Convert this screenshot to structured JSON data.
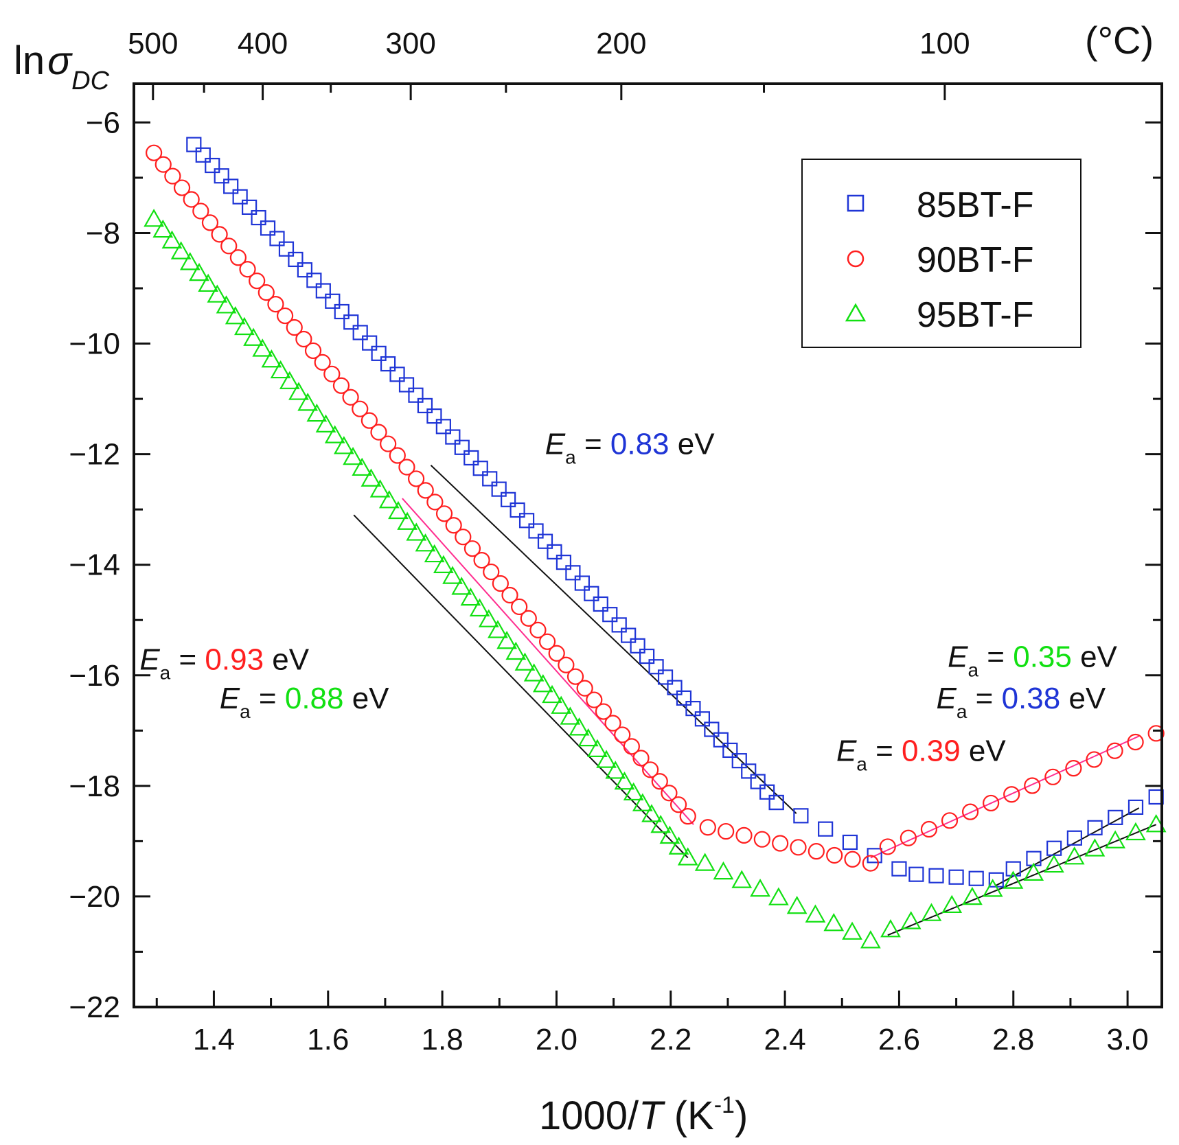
{
  "chart_data": {
    "type": "scatter",
    "title": "",
    "ylabel": {
      "main": "ln",
      "symbol": "σ",
      "subscript": "DC"
    },
    "xlabel": {
      "prefix": "1000/",
      "var": "T",
      "unit_open": " (K",
      "unit_sup": "-1",
      "unit_close": ")"
    },
    "top_axis_label": "(°C)",
    "xlim": [
      1.26,
      3.06
    ],
    "ylim": [
      -22,
      -5.3
    ],
    "x_ticks": [
      "1.4",
      "1.6",
      "1.8",
      "2.0",
      "2.2",
      "2.4",
      "2.6",
      "2.8",
      "3.0"
    ],
    "y_ticks": [
      "-6",
      "-8",
      "-10",
      "-12",
      "-14",
      "-16",
      "-18",
      "-20",
      "-22"
    ],
    "top_ticks": [
      {
        "label": "500",
        "celsius": 500
      },
      {
        "label": "400",
        "celsius": 400
      },
      {
        "label": "300",
        "celsius": 300
      },
      {
        "label": "200",
        "celsius": 200
      },
      {
        "label": "100",
        "celsius": 100
      }
    ],
    "colors": {
      "blue": "#1f35d6",
      "red": "#ff1f1f",
      "green": "#12e012",
      "pink": "#ff2d8f",
      "black": "#111111"
    },
    "series": [
      {
        "name": "85BT-F",
        "marker": "square",
        "color": "#1f35d6",
        "segments": [
          {
            "x0": 1.365,
            "y0": -6.4,
            "x1": 2.385,
            "y1": -18.3,
            "n": 64
          },
          {
            "x0": 2.385,
            "y0": -18.3,
            "x1": 2.6,
            "y1": -19.5,
            "n": 6
          },
          {
            "x0": 2.63,
            "y0": -19.6,
            "x1": 2.77,
            "y1": -19.7,
            "n": 5
          },
          {
            "x0": 2.8,
            "y0": -19.5,
            "x1": 3.05,
            "y1": -18.2,
            "n": 8
          }
        ],
        "fit_lines": [
          {
            "x": [
              1.78,
              2.42
            ],
            "y": [
              -12.2,
              -18.5
            ],
            "color": "#111111"
          },
          {
            "x": [
              2.77,
              3.02
            ],
            "y": [
              -19.8,
              -18.4
            ],
            "color": "#111111"
          }
        ]
      },
      {
        "name": "90BT-F",
        "marker": "circle",
        "color": "#ff1f1f",
        "segments": [
          {
            "x0": 1.295,
            "y0": -6.55,
            "x1": 2.23,
            "y1": -18.55,
            "n": 58
          },
          {
            "x0": 2.265,
            "y0": -18.75,
            "x1": 2.55,
            "y1": -19.4,
            "n": 10
          },
          {
            "x0": 2.58,
            "y0": -19.1,
            "x1": 3.05,
            "y1": -17.05,
            "n": 14
          }
        ],
        "fit_lines": [
          {
            "x": [
              1.73,
              2.24
            ],
            "y": [
              -12.8,
              -18.7
            ],
            "color": "#ff2d8f"
          },
          {
            "x": [
              2.55,
              3.02
            ],
            "y": [
              -19.3,
              -17.1
            ],
            "color": "#ff2d8f"
          }
        ]
      },
      {
        "name": "95BT-F",
        "marker": "triangle",
        "color": "#12e012",
        "segments": [
          {
            "x0": 1.295,
            "y0": -7.75,
            "x1": 2.23,
            "y1": -19.3,
            "n": 60
          },
          {
            "x0": 2.26,
            "y0": -19.4,
            "x1": 2.55,
            "y1": -20.8,
            "n": 10
          },
          {
            "x0": 2.585,
            "y0": -20.6,
            "x1": 3.05,
            "y1": -18.7,
            "n": 14
          }
        ],
        "fit_lines": [
          {
            "x": [
              1.645,
              2.23
            ],
            "y": [
              -13.1,
              -19.3
            ],
            "color": "#111111"
          },
          {
            "x": [
              2.58,
              3.05
            ],
            "y": [
              -20.7,
              -18.7
            ],
            "color": "#111111"
          }
        ]
      }
    ],
    "annotations": [
      {
        "anchor": [
          1.98,
          -12.0
        ],
        "value": "0.83",
        "color": "#1f35d6",
        "prefix": "E",
        "sub": "a",
        "eq": " = ",
        "unit": " eV"
      },
      {
        "anchor": [
          1.27,
          -15.9
        ],
        "value": "0.93",
        "color": "#ff1f1f",
        "prefix": "E",
        "sub": "a",
        "eq": " = ",
        "unit": " eV"
      },
      {
        "anchor": [
          1.41,
          -16.6
        ],
        "value": "0.88",
        "color": "#12e012",
        "prefix": "E",
        "sub": "a",
        "eq": " = ",
        "unit": " eV"
      },
      {
        "anchor": [
          2.685,
          -15.85
        ],
        "value": "0.35",
        "color": "#12e012",
        "prefix": "E",
        "sub": "a",
        "eq": " = ",
        "unit": " eV"
      },
      {
        "anchor": [
          2.665,
          -16.6
        ],
        "value": "0.38",
        "color": "#1f35d6",
        "prefix": "E",
        "sub": "a",
        "eq": " = ",
        "unit": " eV"
      },
      {
        "anchor": [
          2.49,
          -17.55
        ],
        "value": "0.39",
        "color": "#ff1f1f",
        "prefix": "E",
        "sub": "a",
        "eq": " = ",
        "unit": " eV"
      }
    ],
    "legend": {
      "position": "top-right",
      "entries": [
        "85BT-F",
        "90BT-F",
        "95BT-F"
      ]
    }
  }
}
